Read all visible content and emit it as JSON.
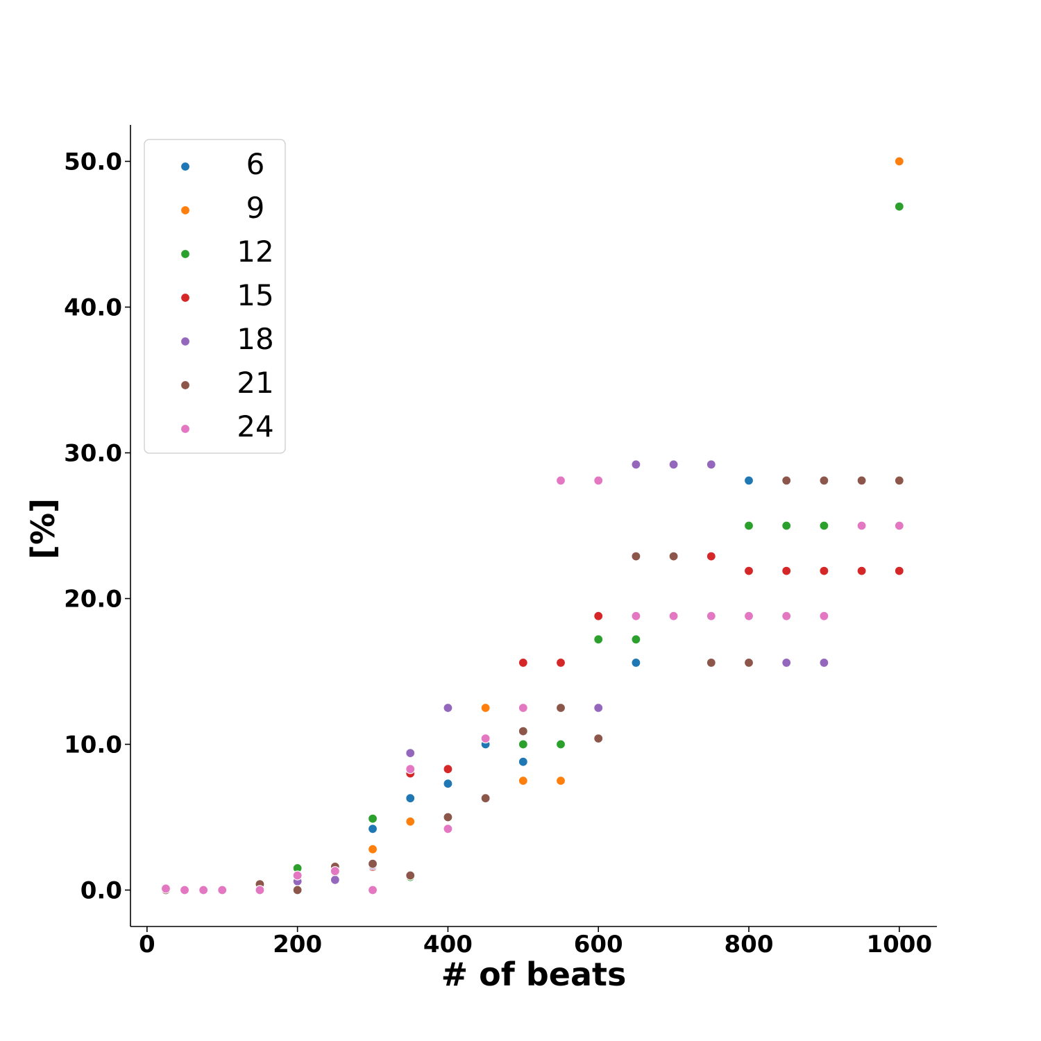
{
  "chart_data": {
    "type": "scatter",
    "title": "",
    "xlabel": "# of beats",
    "ylabel": "[%]",
    "xlim": [
      -22,
      1050
    ],
    "ylim": [
      -2.5,
      52.5
    ],
    "xticks": [
      0,
      200,
      400,
      600,
      800,
      1000
    ],
    "xtick_labels": [
      "0",
      "200",
      "400",
      "600",
      "800",
      "1000"
    ],
    "yticks": [
      0,
      10,
      20,
      30,
      40,
      50
    ],
    "ytick_labels": [
      "0.0",
      "10.0",
      "20.0",
      "30.0",
      "40.0",
      "50.0"
    ],
    "grid": false,
    "legend_position": "top-left",
    "series": [
      {
        "name": "6",
        "color": "#1f77b4",
        "points": [
          [
            25,
            0
          ],
          [
            50,
            0
          ],
          [
            100,
            0
          ],
          [
            150,
            0
          ],
          [
            200,
            0.6
          ],
          [
            250,
            1.5
          ],
          [
            300,
            4.2
          ],
          [
            350,
            6.3
          ],
          [
            400,
            7.3
          ],
          [
            450,
            10.0
          ],
          [
            500,
            8.8
          ],
          [
            650,
            15.6
          ],
          [
            800,
            28.1
          ]
        ]
      },
      {
        "name": "9",
        "color": "#ff7f0e",
        "points": [
          [
            25,
            0
          ],
          [
            150,
            0
          ],
          [
            200,
            1.0
          ],
          [
            250,
            1.2
          ],
          [
            300,
            2.8
          ],
          [
            350,
            4.7
          ],
          [
            450,
            12.5
          ],
          [
            500,
            7.5
          ],
          [
            550,
            7.5
          ],
          [
            1000,
            50.0
          ]
        ]
      },
      {
        "name": "12",
        "color": "#2ca02c",
        "points": [
          [
            25,
            0
          ],
          [
            150,
            0.2
          ],
          [
            200,
            1.5
          ],
          [
            250,
            1.3
          ],
          [
            300,
            4.9
          ],
          [
            350,
            0.9
          ],
          [
            500,
            10.0
          ],
          [
            550,
            10.0
          ],
          [
            600,
            17.2
          ],
          [
            650,
            17.2
          ],
          [
            800,
            25.0
          ],
          [
            850,
            25.0
          ],
          [
            900,
            25.0
          ],
          [
            1000,
            46.9
          ]
        ]
      },
      {
        "name": "15",
        "color": "#d62728",
        "points": [
          [
            25,
            0
          ],
          [
            150,
            0.3
          ],
          [
            200,
            0.9
          ],
          [
            250,
            1.4
          ],
          [
            300,
            1.6
          ],
          [
            350,
            8.0
          ],
          [
            400,
            8.3
          ],
          [
            500,
            15.6
          ],
          [
            550,
            15.6
          ],
          [
            600,
            18.8
          ],
          [
            750,
            22.9
          ],
          [
            800,
            21.9
          ],
          [
            850,
            21.9
          ],
          [
            900,
            21.9
          ],
          [
            950,
            21.9
          ],
          [
            1000,
            21.9
          ]
        ]
      },
      {
        "name": "18",
        "color": "#9467bd",
        "points": [
          [
            25,
            0
          ],
          [
            150,
            0.1
          ],
          [
            200,
            0.6
          ],
          [
            250,
            0.7
          ],
          [
            300,
            1.7
          ],
          [
            350,
            9.4
          ],
          [
            400,
            12.5
          ],
          [
            600,
            12.5
          ],
          [
            650,
            29.2
          ],
          [
            700,
            29.2
          ],
          [
            750,
            29.2
          ],
          [
            850,
            15.6
          ],
          [
            900,
            15.6
          ]
        ]
      },
      {
        "name": "21",
        "color": "#8c564b",
        "points": [
          [
            25,
            0
          ],
          [
            150,
            0.4
          ],
          [
            200,
            0
          ],
          [
            250,
            1.6
          ],
          [
            300,
            1.8
          ],
          [
            350,
            1.0
          ],
          [
            400,
            5.0
          ],
          [
            450,
            6.3
          ],
          [
            500,
            10.9
          ],
          [
            550,
            12.5
          ],
          [
            600,
            10.4
          ],
          [
            650,
            22.9
          ],
          [
            700,
            22.9
          ],
          [
            750,
            15.6
          ],
          [
            800,
            15.6
          ],
          [
            850,
            28.1
          ],
          [
            900,
            28.1
          ],
          [
            950,
            28.1
          ],
          [
            1000,
            28.1
          ]
        ]
      },
      {
        "name": "24",
        "color": "#e377c2",
        "points": [
          [
            25,
            0.1
          ],
          [
            50,
            0
          ],
          [
            75,
            0
          ],
          [
            100,
            0
          ],
          [
            150,
            0
          ],
          [
            200,
            1.0
          ],
          [
            250,
            1.3
          ],
          [
            300,
            0
          ],
          [
            350,
            8.3
          ],
          [
            400,
            4.2
          ],
          [
            450,
            10.4
          ],
          [
            500,
            12.5
          ],
          [
            550,
            28.1
          ],
          [
            600,
            28.1
          ],
          [
            650,
            18.8
          ],
          [
            700,
            18.8
          ],
          [
            750,
            18.8
          ],
          [
            800,
            18.8
          ],
          [
            850,
            18.8
          ],
          [
            900,
            18.8
          ],
          [
            950,
            25.0
          ],
          [
            1000,
            25.0
          ]
        ]
      }
    ]
  }
}
